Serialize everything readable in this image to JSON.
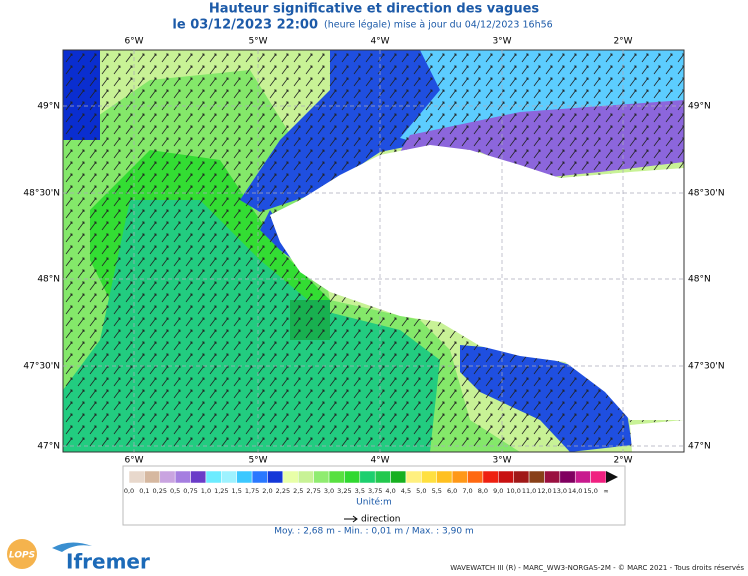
{
  "header": {
    "title": "Hauteur significative et direction des vagues",
    "date": "le 03/12/2023 22:00",
    "note": "(heure légale) mise à jour du 04/12/2023 16h56"
  },
  "map": {
    "lon_labels": [
      "6°W",
      "5°W",
      "4°W",
      "3°W",
      "2°W"
    ],
    "lat_labels": [
      "49°N",
      "48°30'N",
      "48°N",
      "47°30'N",
      "47°N"
    ]
  },
  "legend": {
    "labels": [
      "0,0",
      "0,1",
      "0,25",
      "0,5",
      "0,75",
      "1,0",
      "1,25",
      "1,5",
      "1,75",
      "2,0",
      "2,25",
      "2,5",
      "2,75",
      "3,0",
      "3,25",
      "3,5",
      "3,75",
      "4,0",
      "4,5",
      "5,0",
      "5,5",
      "6,0",
      "7,0",
      "8,0",
      "9,0",
      "10,0",
      "11,0",
      "12,0",
      "13,0",
      "14,0",
      "15,0",
      "∞"
    ],
    "colors": [
      "#e8d8cc",
      "#d6b8a0",
      "#c9a4e0",
      "#a57ee0",
      "#6a3cc8",
      "#6cecff",
      "#9ef2ff",
      "#3cc8ff",
      "#2a78ff",
      "#1438d8",
      "#e8ffa8",
      "#c8f296",
      "#90ec70",
      "#58e040",
      "#30d830",
      "#1ccf6e",
      "#22c84e",
      "#16b020",
      "#fff080",
      "#ffe040",
      "#ffc020",
      "#ff9818",
      "#ff6810",
      "#ee2010",
      "#c81010",
      "#a01818",
      "#884018",
      "#9a1040",
      "#800060",
      "#c81a8e",
      "#f02080"
    ],
    "unit": "Unité:m",
    "direction": "direction",
    "stats": "Moy. : 2,68 m   -   Min. : 0,01 m / Max. : 3,90 m"
  },
  "footer": {
    "credit": "WAVEWATCH III (R) - MARC_WW3-NORGAS-2M - © MARC 2021 - Tous droits réservés",
    "logo_lops": "LOPS",
    "logo_ifremer": "Ifremer"
  }
}
